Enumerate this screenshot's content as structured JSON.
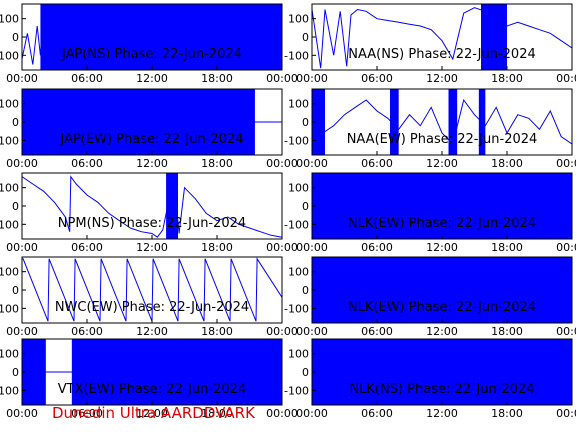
{
  "chart_data": [
    {
      "type": "line",
      "title": "JAP(NS) Phase: 22-Jun-2024",
      "yticks": [
        100,
        0,
        -100
      ],
      "xticks": [
        "00:00",
        "06:00",
        "12:00",
        "18:00",
        "00:00"
      ],
      "ylim": [
        -180,
        180
      ],
      "xlim": [
        0,
        24
      ],
      "color": "#0000ff",
      "series": [
        {
          "x": [
            0,
            0.5,
            1.0,
            1.4,
            1.7,
            2.0,
            24
          ],
          "y": [
            -120,
            20,
            -150,
            60,
            -100,
            150,
            150
          ],
          "band": [
            [
              1.7,
              24
            ]
          ]
        }
      ]
    },
    {
      "type": "line",
      "title": "NAA(NS) Phase: 22-Jun-2024",
      "yticks": [
        100,
        0,
        -100
      ],
      "xticks": [
        "00:00",
        "06:00",
        "12:00",
        "18:00",
        "00:00"
      ],
      "ylim": [
        -180,
        180
      ],
      "xlim": [
        0,
        24
      ],
      "color": "#0000ff",
      "series": [
        {
          "x": [
            0,
            0.8,
            1.2,
            2.0,
            2.6,
            3.2,
            3.6,
            4.2,
            5.0,
            6.0,
            7.0,
            8.0,
            9.0,
            10.0,
            11.0,
            12.0,
            13.0,
            14.0,
            15.0,
            16.0,
            17.0,
            18.0,
            19.0,
            20.0,
            21.0,
            22.0,
            23.0,
            24.0
          ],
          "y": [
            150,
            -170,
            150,
            -100,
            140,
            -160,
            120,
            150,
            140,
            100,
            90,
            80,
            70,
            60,
            40,
            -20,
            -120,
            130,
            160,
            140,
            120,
            60,
            80,
            60,
            40,
            20,
            -20,
            -60
          ],
          "band": [
            [
              15.6,
              18.0
            ]
          ]
        }
      ]
    },
    {
      "type": "line",
      "title": "JAP(EW) Phase: 22-Jun-2024",
      "yticks": [
        100,
        0,
        -100
      ],
      "xticks": [
        "00:00",
        "06:00",
        "12:00",
        "18:00",
        "00:00"
      ],
      "ylim": [
        -180,
        180
      ],
      "xlim": [
        0,
        24
      ],
      "color": "#0000ff",
      "series": [
        {
          "x": [
            0,
            24
          ],
          "y": [
            0,
            0
          ],
          "band": [
            [
              0,
              21.5
            ]
          ]
        }
      ]
    },
    {
      "type": "line",
      "title": "NAA(EW) Phase: 22-Jun-2024",
      "yticks": [
        100,
        0,
        -100
      ],
      "xticks": [
        "00:00",
        "06:00",
        "12:00",
        "18:00",
        "00:00"
      ],
      "ylim": [
        -180,
        180
      ],
      "xlim": [
        0,
        24
      ],
      "color": "#0000ff",
      "series": [
        {
          "x": [
            0,
            1,
            2,
            3,
            4,
            5,
            6,
            7,
            8,
            9,
            10,
            11,
            12,
            13,
            14,
            15,
            16,
            17,
            18,
            19,
            20,
            21,
            22,
            23,
            24
          ],
          "y": [
            -100,
            -60,
            -20,
            40,
            80,
            120,
            60,
            20,
            -40,
            40,
            -20,
            80,
            -60,
            -120,
            120,
            40,
            -20,
            80,
            -60,
            40,
            20,
            -40,
            60,
            -80,
            -120
          ],
          "band": [
            [
              0,
              1.2
            ],
            [
              7.2,
              8.0
            ],
            [
              12.6,
              13.4
            ],
            [
              15.4,
              16.0
            ]
          ]
        }
      ]
    },
    {
      "type": "line",
      "title": "NPM(NS) Phase: 22-Jun-2024",
      "yticks": [
        100,
        0,
        -100
      ],
      "xticks": [
        "00:00",
        "06:00",
        "12:00",
        "18:00",
        "00:00"
      ],
      "ylim": [
        -180,
        180
      ],
      "xlim": [
        0,
        24
      ],
      "color": "#0000ff",
      "series": [
        {
          "x": [
            0,
            1,
            2,
            3,
            4,
            4.4,
            4.5,
            5,
            6,
            7,
            8,
            9,
            10,
            11,
            12,
            12.5,
            13,
            14,
            14.5,
            15,
            16,
            17,
            18,
            19,
            20,
            21,
            22,
            23,
            24
          ],
          "y": [
            160,
            120,
            80,
            20,
            -60,
            -140,
            160,
            120,
            60,
            20,
            -40,
            -80,
            -120,
            -140,
            -150,
            -170,
            -130,
            160,
            -150,
            100,
            40,
            -40,
            -80,
            -60,
            -100,
            -120,
            -140,
            -160,
            -170
          ],
          "band": [
            [
              13.3,
              14.4
            ]
          ]
        }
      ]
    },
    {
      "type": "line",
      "title": "NLK(EW) Phase: 22-Jun-2024",
      "yticks": [
        100,
        0,
        -100
      ],
      "xticks": [
        "00:00",
        "06:00",
        "12:00",
        "18:00",
        "00:00"
      ],
      "ylim": [
        -180,
        180
      ],
      "xlim": [
        0,
        24
      ],
      "color": "#0000ff",
      "series": [
        {
          "x": [
            0,
            24
          ],
          "y": [
            0,
            0
          ],
          "band": [
            [
              0,
              24
            ]
          ]
        }
      ]
    },
    {
      "type": "line",
      "title": "NWC(EW) Phase: 22-Jun-2024",
      "yticks": [
        100,
        0,
        -100
      ],
      "xticks": [
        "00:00",
        "06:00",
        "12:00",
        "18:00",
        "00:00"
      ],
      "ylim": [
        -180,
        180
      ],
      "xlim": [
        0,
        24
      ],
      "color": "#0000ff",
      "series": [
        {
          "x": [
            0,
            0.1,
            2.4,
            2.5,
            4.8,
            4.9,
            7.2,
            7.3,
            9.6,
            9.7,
            12.0,
            12.1,
            14.4,
            14.5,
            16.8,
            16.9,
            19.2,
            19.3,
            21.6,
            21.7,
            24
          ],
          "y": [
            170,
            170,
            -170,
            170,
            -170,
            170,
            -170,
            170,
            -170,
            170,
            -170,
            170,
            -170,
            170,
            -170,
            170,
            -170,
            170,
            -170,
            170,
            -40
          ],
          "band": []
        }
      ]
    },
    {
      "type": "line",
      "title": "NLK(EW) Phase: 22-Jun-2024",
      "yticks": [
        100,
        0,
        -100
      ],
      "xticks": [
        "00:00",
        "06:00",
        "12:00",
        "18:00",
        "00:00"
      ],
      "ylim": [
        -180,
        180
      ],
      "xlim": [
        0,
        24
      ],
      "color": "#0000ff",
      "series": [
        {
          "x": [
            0,
            24
          ],
          "y": [
            0,
            0
          ],
          "band": [
            [
              0,
              24
            ]
          ]
        }
      ]
    },
    {
      "type": "line",
      "title": "VTX(EW) Phase: 22-Jun-2024",
      "yticks": [
        100,
        0,
        -100
      ],
      "xticks": [
        "00:00",
        "06:00",
        "12:00",
        "18:00",
        "00:00"
      ],
      "ylim": [
        -180,
        180
      ],
      "xlim": [
        0,
        24
      ],
      "color": "#0000ff",
      "series": [
        {
          "x": [
            0,
            24
          ],
          "y": [
            0,
            0
          ],
          "band": [
            [
              0,
              2.2
            ],
            [
              4.6,
              24
            ]
          ]
        }
      ]
    },
    {
      "type": "line",
      "title": "NLK(NS) Phase: 22-Jun-2024",
      "yticks": [
        100,
        0,
        -100
      ],
      "xticks": [
        "00:00",
        "06:00",
        "12:00",
        "18:00",
        "00:00"
      ],
      "ylim": [
        -180,
        180
      ],
      "xlim": [
        0,
        24
      ],
      "color": "#0000ff",
      "series": [
        {
          "x": [
            0,
            24
          ],
          "y": [
            0,
            0
          ],
          "band": [
            [
              0,
              24
            ]
          ]
        }
      ]
    }
  ],
  "footer": "Dunedin Ultra AARDDVARK"
}
